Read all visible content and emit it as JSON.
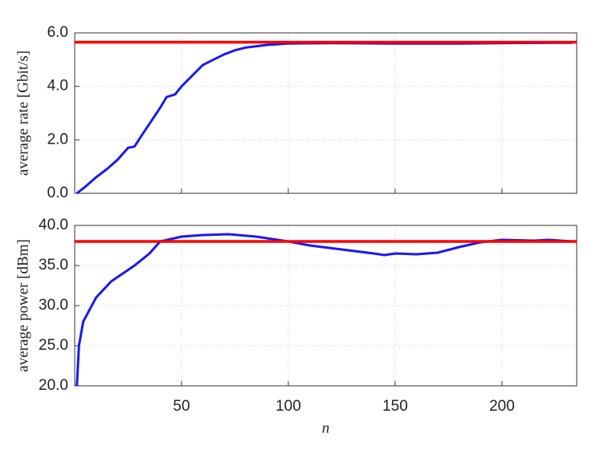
{
  "chart_data": [
    {
      "type": "line",
      "ylabel": "average rate [Gbit/s]",
      "x": [
        1,
        5,
        10,
        15,
        20,
        25,
        28,
        30,
        35,
        40,
        43,
        47,
        50,
        55,
        60,
        65,
        70,
        75,
        80,
        90,
        100,
        120,
        150,
        180,
        200,
        233
      ],
      "values": [
        0,
        0.25,
        0.6,
        0.9,
        1.25,
        1.7,
        1.75,
        2.0,
        2.6,
        3.2,
        3.6,
        3.7,
        4.0,
        4.4,
        4.8,
        5.0,
        5.2,
        5.35,
        5.45,
        5.55,
        5.6,
        5.62,
        5.6,
        5.6,
        5.62,
        5.63
      ],
      "color": "#1a1aee",
      "ref_line": {
        "value": 5.65,
        "color": "#ff0000"
      },
      "xlim": [
        0,
        235
      ],
      "xticks": [
        50,
        100,
        150,
        200
      ],
      "ylim": [
        0,
        6
      ],
      "yticks": [
        {
          "value": 0,
          "label": "0.0"
        },
        {
          "value": 2,
          "label": "2.0"
        },
        {
          "value": 4,
          "label": "4.0"
        },
        {
          "value": 6,
          "label": "6.0"
        }
      ],
      "grid": true
    },
    {
      "type": "line",
      "ylabel": "average power [dBm]",
      "xlabel": "n",
      "x": [
        1,
        2,
        4,
        10,
        17,
        28,
        35,
        40,
        50,
        60,
        72,
        85,
        100,
        110,
        125,
        140,
        145,
        150,
        160,
        170,
        180,
        190,
        200,
        215,
        222,
        233
      ],
      "values": [
        20,
        25,
        28,
        31,
        33,
        35,
        36.5,
        38,
        38.6,
        38.8,
        38.9,
        38.6,
        38,
        37.5,
        37.0,
        36.5,
        36.3,
        36.5,
        36.4,
        36.6,
        37.3,
        37.9,
        38.2,
        38.1,
        38.2,
        38.0
      ],
      "color": "#1a1aee",
      "ref_line": {
        "value": 38,
        "color": "#ff0000"
      },
      "xlim": [
        0,
        235
      ],
      "xticks": [
        50,
        100,
        150,
        200
      ],
      "ylim": [
        20,
        40
      ],
      "yticks": [
        {
          "value": 20,
          "label": "20.0"
        },
        {
          "value": 25,
          "label": "25.0"
        },
        {
          "value": 30,
          "label": "30.0"
        },
        {
          "value": 35,
          "label": "35.0"
        },
        {
          "value": 40,
          "label": "40.0"
        }
      ],
      "grid": true
    }
  ]
}
